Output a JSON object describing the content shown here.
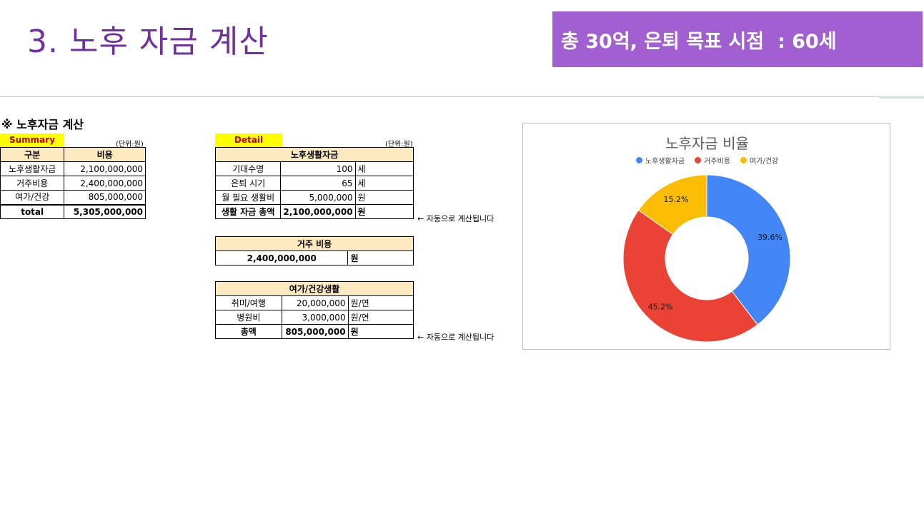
{
  "slide": {
    "title": "3. 노후 자금 계산",
    "goal": "총 30억, 은퇴 목표 시점  : 60세"
  },
  "sheet": {
    "title": "※ 노후자금 계산",
    "summary": {
      "tag": "Summary",
      "unit": "(단위:원)",
      "headers": [
        "구분",
        "비용"
      ],
      "rows": [
        {
          "label": "노후생활자금",
          "value": "2,100,000,000"
        },
        {
          "label": "거주비용",
          "value": "2,400,000,000"
        },
        {
          "label": "여가/건강",
          "value": "805,000,000"
        }
      ],
      "total_label": "total",
      "total_value": "5,305,000,000"
    },
    "detail": {
      "tag": "Detail",
      "unit": "(단위:원)",
      "living": {
        "header": "노후생활자금",
        "rows": [
          {
            "label": "기대수명",
            "value": "100",
            "unit": "세"
          },
          {
            "label": "은퇴 시기",
            "value": "65",
            "unit": "세"
          },
          {
            "label": "월 필요 생활비",
            "value": "5,000,000",
            "unit": "원"
          }
        ],
        "total_label": "생활 자금 총액",
        "total_value": "2,100,000,000",
        "total_unit": "원",
        "note": "← 자동으로 계산됩니다"
      },
      "housing": {
        "header": "거주 비용",
        "value": "2,400,000,000",
        "unit": "원"
      },
      "leisure": {
        "header": "여가/건강생활",
        "rows": [
          {
            "label": "취미/여행",
            "value": "20,000,000",
            "unit": "원/연"
          },
          {
            "label": "병원비",
            "value": "3,000,000",
            "unit": "원/연"
          }
        ],
        "total_label": "총액",
        "total_value": "805,000,000",
        "total_unit": "원",
        "note": "← 자동으로 계산됩니다"
      }
    }
  },
  "chart_data": {
    "type": "pie",
    "donut": true,
    "title": "노후자금 비율",
    "legend_position": "top",
    "categories": [
      "노후생활자금",
      "거주비용",
      "여가/건강"
    ],
    "values": [
      39.6,
      45.2,
      15.2
    ],
    "labels": [
      "39.6%",
      "45.2%",
      "15.2%"
    ],
    "colors": [
      "#4285f4",
      "#ea4335",
      "#fbbc04"
    ]
  }
}
